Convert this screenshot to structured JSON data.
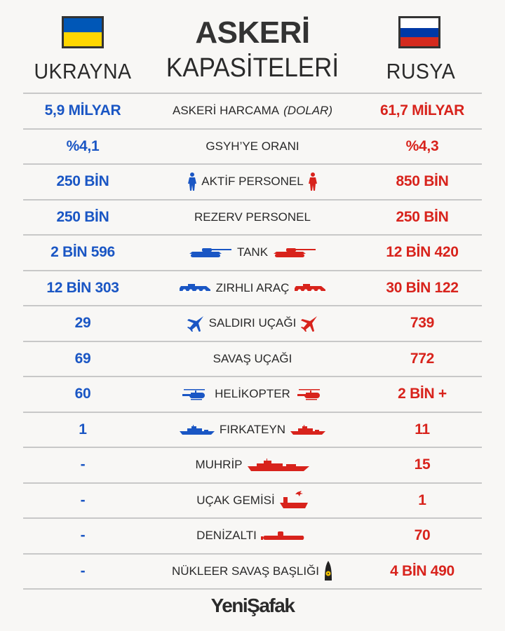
{
  "header": {
    "title_line1": "ASKERİ",
    "title_line2": "KAPASİTELERİ",
    "left_country": "UKRAYNA",
    "right_country": "RUSYA"
  },
  "colors": {
    "ukraine": "#1a56c4",
    "russia": "#d8231c",
    "ua_flag_top": "#0057b7",
    "ua_flag_bottom": "#ffd700",
    "ru_flag": [
      "#ffffff",
      "#0039a6",
      "#d52b1e"
    ]
  },
  "rows": [
    {
      "label": "ASKERİ HARCAMA",
      "note": "(DOLAR)",
      "ukraine": "5,9 MİLYAR",
      "russia": "61,7 MİLYAR",
      "icon": ""
    },
    {
      "label": "GSYH’YE ORANI",
      "ukraine": "%4,1",
      "russia": "%4,3",
      "icon": ""
    },
    {
      "label": "AKTİF PERSONEL",
      "ukraine": "250 BİN",
      "russia": "850 BİN",
      "icon": "soldier-icon"
    },
    {
      "label": "REZERV PERSONEL",
      "ukraine": "250 BİN",
      "russia": "250 BİN",
      "icon": ""
    },
    {
      "label": "TANK",
      "ukraine": "2 BİN 596",
      "russia": "12 BİN 420",
      "icon": "tank-icon"
    },
    {
      "label": "ZIRHLI ARAÇ",
      "ukraine": "12 BİN 303",
      "russia": "30 BİN 122",
      "icon": "armored-vehicle-icon"
    },
    {
      "label": "SALDIRI UÇAĞI",
      "ukraine": "29",
      "russia": "739",
      "icon": "fighter-jet-icon"
    },
    {
      "label": "SAVAŞ UÇAĞI",
      "ukraine": "69",
      "russia": "772",
      "icon": ""
    },
    {
      "label": "HELİKOPTER",
      "ukraine": "60",
      "russia": "2 BİN +",
      "icon": "helicopter-icon"
    },
    {
      "label": "FIRKATEYN",
      "ukraine": "1",
      "russia": "11",
      "icon": "frigate-icon"
    },
    {
      "label": "MUHRİP",
      "ukraine": "-",
      "russia": "15",
      "icon": "destroyer-icon"
    },
    {
      "label": "UÇAK GEMİSİ",
      "ukraine": "-",
      "russia": "1",
      "icon": "aircraft-carrier-icon"
    },
    {
      "label": "DENİZALTI",
      "ukraine": "-",
      "russia": "70",
      "icon": "submarine-icon"
    },
    {
      "label": "NÜKLEER SAVAŞ BAŞLIĞI",
      "ukraine": "-",
      "russia": "4 BİN 490",
      "icon": "nuclear-warhead-icon"
    }
  ],
  "footer": {
    "logo": "YeniŞafak"
  }
}
